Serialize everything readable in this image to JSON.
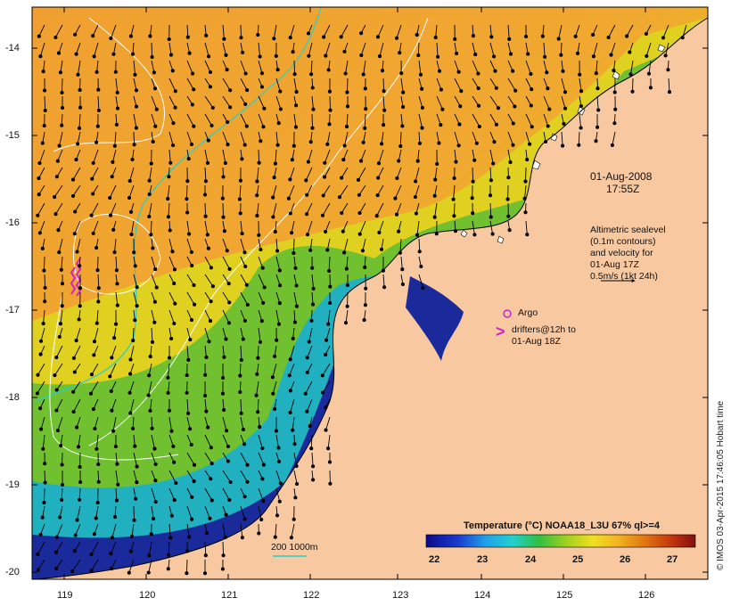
{
  "map": {
    "date": "01-Aug-2008",
    "time": "17:55Z",
    "axes": {
      "lon_ticks": [
        "119",
        "120",
        "121",
        "122",
        "123",
        "124",
        "125",
        "126"
      ],
      "lat_ticks": [
        "-14",
        "-15",
        "-16",
        "-17",
        "-18",
        "-19",
        "-20"
      ]
    },
    "legend_altimetry": {
      "line1": "Altimetric sealevel",
      "line2": "(0.1m contours)",
      "line3": "and velocity for",
      "line4": "01-Aug 17Z",
      "line5": "0.5m/s (1kt 24h)"
    },
    "legend_argo": "Argo",
    "legend_drifters": {
      "line1": "drifters@12h to",
      "line2": "01-Aug 18Z",
      "symbol": ">"
    },
    "bathy_label": "200  1000m",
    "colorbar": {
      "title": "Temperature (°C) NOAA18_L3U 67% ql>=4",
      "ticks": [
        "22",
        "23",
        "24",
        "25",
        "26",
        "27"
      ]
    },
    "credit": "© IMOS 03-Apr-2015 17:46:05 Hobart time",
    "colors": {
      "land": "#f8c9a0",
      "warm": "#f0a030",
      "mid": "#e8d020",
      "green": "#40c040",
      "cyan": "#20c0e0",
      "blue": "#1a2a9a",
      "argo": "#d020d0",
      "contour200": "#20d0d0"
    }
  }
}
